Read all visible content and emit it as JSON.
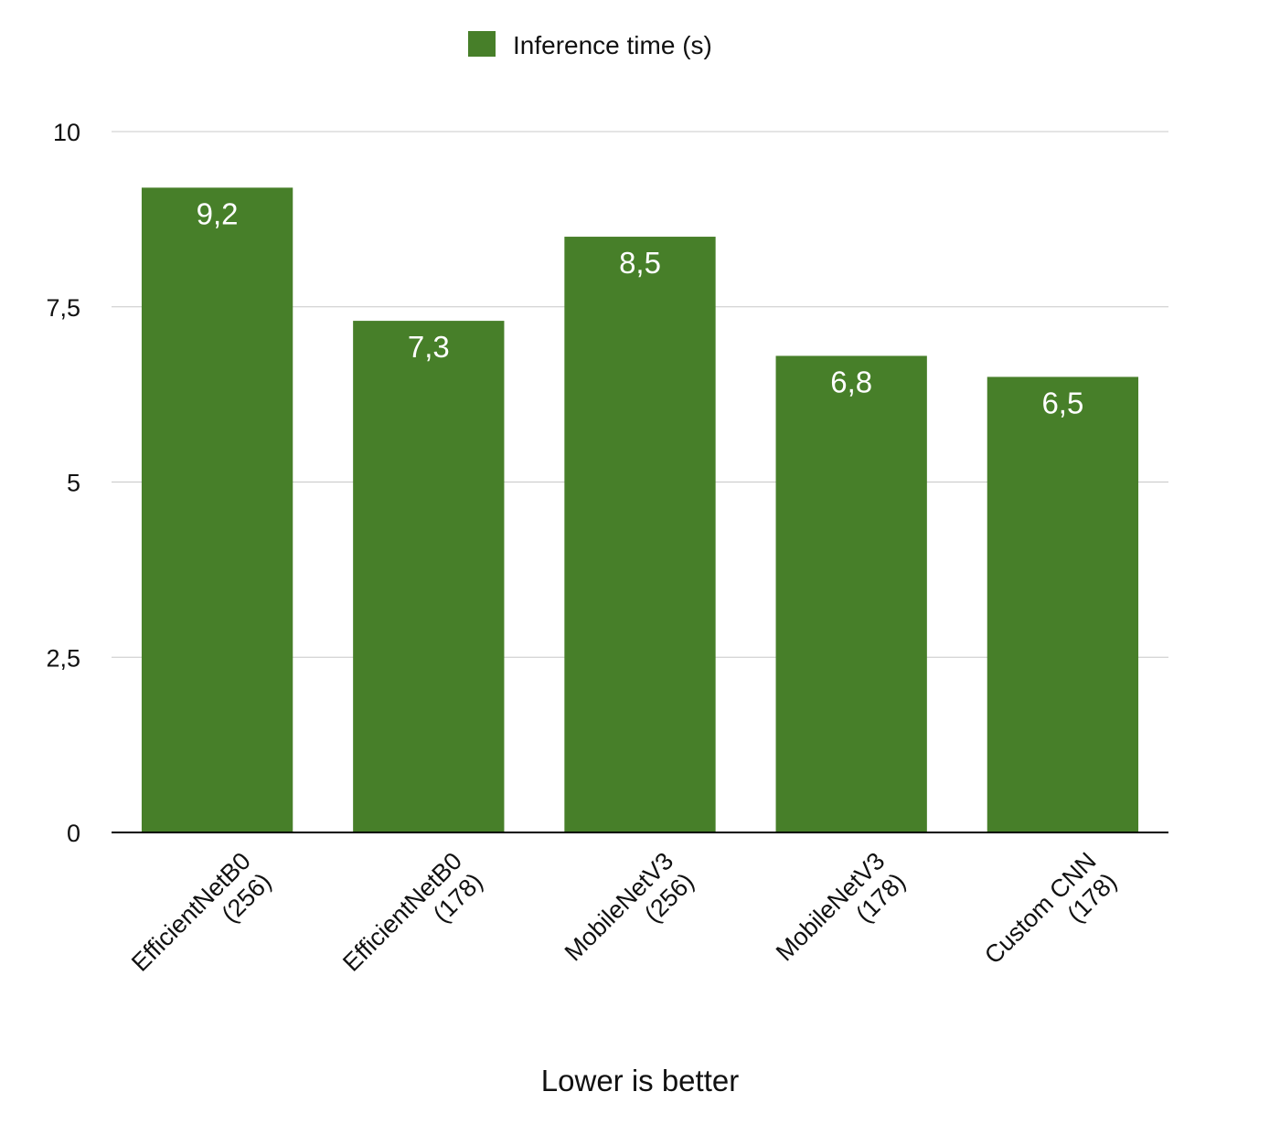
{
  "chart_data": {
    "type": "bar",
    "categories": [
      [
        "EfficientNetB0",
        "(256)"
      ],
      [
        "EfficientNetB0",
        "(178)"
      ],
      [
        "MobileNetV3",
        "(256)"
      ],
      [
        "MobileNetV3",
        "(178)"
      ],
      [
        "Custom CNN",
        "(178)"
      ]
    ],
    "series": [
      {
        "name": "Inference time (s)",
        "values": [
          9.2,
          7.3,
          8.5,
          6.8,
          6.5
        ],
        "value_labels": [
          "9,2",
          "7,3",
          "8,5",
          "6,8",
          "6,5"
        ],
        "color": "#477f29"
      }
    ],
    "xlabel": "Lower is better",
    "ylabel": "",
    "ylim": [
      0,
      10
    ],
    "yticks": [
      0,
      2.5,
      5,
      7.5,
      10
    ],
    "ytick_labels": [
      "0",
      "2,5",
      "5",
      "7,5",
      "10"
    ],
    "grid": true,
    "legend_position": "top-center"
  }
}
